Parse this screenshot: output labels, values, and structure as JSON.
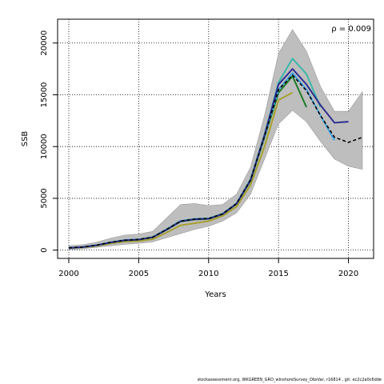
{
  "chart_data": {
    "type": "line",
    "xlabel": "Years",
    "ylabel": "SSB",
    "xlim": [
      1999.2,
      2021.8
    ],
    "ylim": [
      -800,
      22300
    ],
    "x_ticks": [
      2000,
      2005,
      2010,
      2015,
      2020
    ],
    "y_ticks": [
      0,
      5000,
      10000,
      15000,
      20000
    ],
    "grid": "dotted",
    "annotation": "ρ = 0.009",
    "band": {
      "color": "#bebebe",
      "x": [
        2000,
        2001,
        2002,
        2003,
        2004,
        2005,
        2006,
        2007,
        2008,
        2009,
        2010,
        2011,
        2012,
        2013,
        2014,
        2015,
        2016,
        2017,
        2018,
        2019,
        2020,
        2021
      ],
      "upper": [
        420,
        520,
        760,
        1150,
        1450,
        1550,
        1800,
        3100,
        4400,
        4500,
        4300,
        4400,
        5400,
        8000,
        13000,
        19000,
        21300,
        19200,
        15800,
        13400,
        13400,
        15300
      ],
      "lower": [
        50,
        130,
        270,
        420,
        560,
        650,
        800,
        1200,
        1600,
        2000,
        2300,
        2800,
        3600,
        5400,
        8800,
        12200,
        13500,
        12400,
        10500,
        8800,
        8100,
        7800
      ]
    },
    "series": [
      {
        "color": "#000000",
        "dashed": true,
        "x": [
          2000,
          2001,
          2002,
          2003,
          2004,
          2005,
          2006,
          2007,
          2008,
          2009,
          2010,
          2011,
          2012,
          2013,
          2014,
          2015,
          2016,
          2017,
          2018,
          2019,
          2020,
          2021
        ],
        "values": [
          220,
          300,
          480,
          750,
          960,
          1030,
          1250,
          2000,
          2800,
          3000,
          3050,
          3500,
          4500,
          6800,
          11000,
          15500,
          16900,
          15400,
          13000,
          10900,
          10400,
          10900
        ]
      },
      {
        "color": "#2e2c90",
        "x": [
          2000,
          2001,
          2002,
          2003,
          2004,
          2005,
          2006,
          2007,
          2008,
          2009,
          2010,
          2011,
          2012,
          2013,
          2014,
          2015,
          2016,
          2017,
          2018,
          2019,
          2020
        ],
        "values": [
          210,
          290,
          470,
          740,
          950,
          1020,
          1240,
          1980,
          2780,
          2980,
          3030,
          3480,
          4480,
          6750,
          11100,
          16000,
          17500,
          16000,
          14000,
          12300,
          12400
        ]
      },
      {
        "color": "#41a3df",
        "x": [
          2000,
          2001,
          2002,
          2003,
          2004,
          2005,
          2006,
          2007,
          2008,
          2009,
          2010,
          2011,
          2012,
          2013,
          2014,
          2015,
          2016,
          2017,
          2018,
          2019
        ],
        "values": [
          215,
          295,
          475,
          745,
          955,
          1025,
          1245,
          1990,
          2790,
          2990,
          3040,
          3490,
          4490,
          6780,
          11000,
          15500,
          17100,
          15500,
          13000,
          10600
        ]
      },
      {
        "color": "#3eb7a8",
        "x": [
          2000,
          2001,
          2002,
          2003,
          2004,
          2005,
          2006,
          2007,
          2008,
          2009,
          2010,
          2011,
          2012,
          2013,
          2014,
          2015,
          2016,
          2017,
          2018
        ],
        "values": [
          225,
          305,
          485,
          760,
          970,
          1040,
          1260,
          2020,
          2820,
          3020,
          3070,
          3520,
          4520,
          6850,
          11200,
          16200,
          18500,
          17000,
          13800
        ]
      },
      {
        "color": "#1e7b28",
        "x": [
          2000,
          2001,
          2002,
          2003,
          2004,
          2005,
          2006,
          2007,
          2008,
          2009,
          2010,
          2011,
          2012,
          2013,
          2014,
          2015,
          2016,
          2017
        ],
        "values": [
          200,
          280,
          460,
          730,
          940,
          1010,
          1230,
          1960,
          2760,
          2960,
          3010,
          3460,
          4460,
          6700,
          10900,
          15200,
          16800,
          13800
        ]
      },
      {
        "color": "#a7a030",
        "x": [
          2000,
          2001,
          2002,
          2003,
          2004,
          2005,
          2006,
          2007,
          2008,
          2009,
          2010,
          2011,
          2012,
          2013,
          2014,
          2015,
          2016
        ],
        "values": [
          190,
          260,
          420,
          650,
          820,
          880,
          1050,
          1700,
          2400,
          2600,
          2800,
          3300,
          4200,
          6300,
          10000,
          14500,
          15200
        ]
      }
    ]
  },
  "footer": "stockassessment.org,  WKGREEN_GRO_wInshoreSurvey_ObsVar,  r16814 ,  git:  ec2c2a0c6dde"
}
